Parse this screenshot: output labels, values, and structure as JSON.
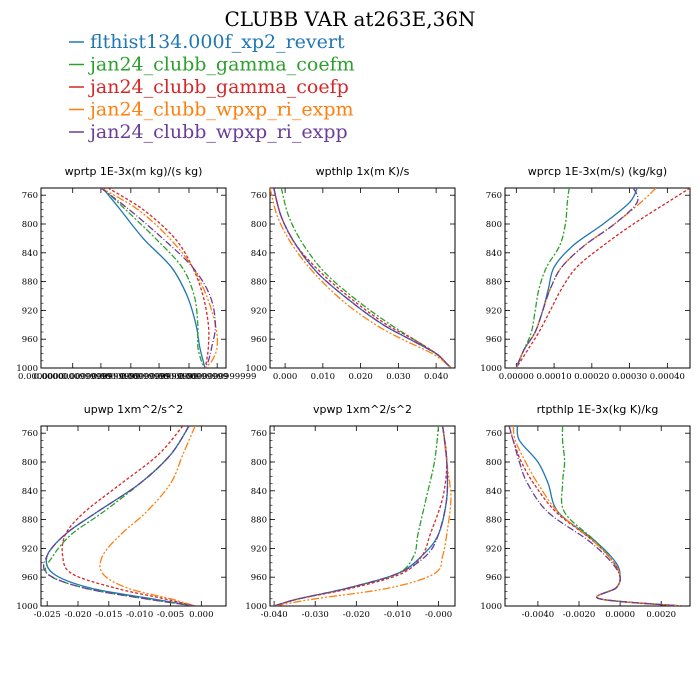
{
  "title": "CLUBB VAR at263E,36N",
  "legend": [
    {
      "name": "flthist134.000f_xp2_revert",
      "color": "#1f77b4"
    },
    {
      "name": "jan24_clubb_gamma_coefm",
      "color": "#2ca02c"
    },
    {
      "name": "jan24_clubb_gamma_coefp",
      "color": "#d62728"
    },
    {
      "name": "jan24_clubb_wpxp_ri_expm",
      "color": "#ff7f0e"
    },
    {
      "name": "jan24_clubb_wpxp_ri_expp",
      "color": "#6a3d9a"
    }
  ],
  "chart_data": [
    {
      "type": "line",
      "title": "wprtp  1E-3x(m kg)/(s kg)",
      "ylim": [
        1000,
        750
      ],
      "yticks": [
        "760",
        "800",
        "840",
        "880",
        "920",
        "960",
        "1000"
      ],
      "xlim": [
        0.0,
        1.05
      ],
      "xticks": [
        {
          "v": 0.0,
          "label": "0.0000000"
        },
        {
          "v": 0.18,
          "label": "0.0000000999999"
        },
        {
          "v": 0.34,
          "label": "0.0000000999999"
        },
        {
          "v": 0.51,
          "label": "0.0000000999999"
        },
        {
          "v": 0.67,
          "label": "0.0000000999999"
        },
        {
          "v": 0.84,
          "label": "0.0000000999999"
        },
        {
          "v": 1.0,
          "label": "0.0000000999999"
        }
      ],
      "y": [
        750,
        780,
        820,
        860,
        900,
        940,
        970,
        990,
        1000
      ],
      "series": [
        {
          "values": [
            0.35,
            0.45,
            0.58,
            0.74,
            0.83,
            0.88,
            0.9,
            0.92,
            0.93
          ]
        },
        {
          "values": [
            0.35,
            0.48,
            0.65,
            0.8,
            0.87,
            0.89,
            0.89,
            0.91,
            0.93
          ]
        },
        {
          "values": [
            0.38,
            0.58,
            0.76,
            0.86,
            0.92,
            0.95,
            0.95,
            0.94,
            0.93
          ]
        },
        {
          "values": [
            0.34,
            0.55,
            0.73,
            0.86,
            0.94,
            0.99,
            1.0,
            0.97,
            0.93
          ]
        },
        {
          "values": [
            0.34,
            0.5,
            0.69,
            0.86,
            0.96,
            0.99,
            0.97,
            0.95,
            0.93
          ]
        }
      ]
    },
    {
      "type": "line",
      "title": "wpthlp  1x(m K)/s",
      "ylim": [
        1000,
        750
      ],
      "yticks": [
        "760",
        "800",
        "840",
        "880",
        "920",
        "960",
        "1000"
      ],
      "xlim": [
        -0.004,
        0.045
      ],
      "xticks": [
        {
          "v": 0.0,
          "label": "0.000"
        },
        {
          "v": 0.01,
          "label": "0.010"
        },
        {
          "v": 0.02,
          "label": "0.020"
        },
        {
          "v": 0.03,
          "label": "0.030"
        },
        {
          "v": 0.04,
          "label": "0.040"
        }
      ],
      "y": [
        750,
        790,
        830,
        870,
        910,
        940,
        960,
        980,
        995,
        1000
      ],
      "series": [
        {
          "values": [
            -0.003,
            -0.001,
            0.003,
            0.009,
            0.018,
            0.026,
            0.033,
            0.04,
            0.043,
            0.044
          ]
        },
        {
          "values": [
            -0.001,
            0.001,
            0.005,
            0.011,
            0.02,
            0.028,
            0.034,
            0.04,
            0.043,
            0.044
          ]
        },
        {
          "values": [
            -0.003,
            -0.001,
            0.003,
            0.01,
            0.019,
            0.027,
            0.034,
            0.04,
            0.043,
            0.044
          ]
        },
        {
          "values": [
            -0.004,
            -0.002,
            0.002,
            0.008,
            0.016,
            0.024,
            0.031,
            0.039,
            0.043,
            0.044
          ]
        },
        {
          "values": [
            -0.003,
            -0.001,
            0.003,
            0.009,
            0.018,
            0.026,
            0.033,
            0.04,
            0.043,
            0.044
          ]
        }
      ]
    },
    {
      "type": "line",
      "title": "wprcp  1E-3x(m/s) (kg/kg)",
      "ylim": [
        1000,
        750
      ],
      "yticks": [
        "760",
        "800",
        "840",
        "880",
        "920",
        "960",
        "1000"
      ],
      "xlim": [
        -3e-05,
        0.00046
      ],
      "xticks": [
        {
          "v": 0.0,
          "label": "0.00000"
        },
        {
          "v": 0.0001,
          "label": "0.00010"
        },
        {
          "v": 0.0002,
          "label": "0.00020"
        },
        {
          "v": 0.0003,
          "label": "0.00030"
        },
        {
          "v": 0.0004,
          "label": "0.00040"
        }
      ],
      "y": [
        750,
        770,
        800,
        830,
        860,
        890,
        920,
        950,
        975,
        1000
      ],
      "series": [
        {
          "values": [
            0.00032,
            0.0003,
            0.00023,
            0.00015,
            0.0001,
            8.5e-05,
            7e-05,
            5e-05,
            2e-05,
            0.0
          ]
        },
        {
          "values": [
            0.00014,
            0.000135,
            0.00013,
            0.000115,
            8e-05,
            6e-05,
            5e-05,
            4e-05,
            2e-05,
            0.0
          ]
        },
        {
          "values": [
            0.00046,
            0.0004,
            0.00031,
            0.00023,
            0.00016,
            0.00012,
            9e-05,
            6e-05,
            3e-05,
            0.0
          ]
        },
        {
          "values": [
            0.00037,
            0.00033,
            0.00026,
            0.00018,
            0.00012,
            9e-05,
            7e-05,
            5e-05,
            2e-05,
            0.0
          ]
        },
        {
          "values": [
            0.00031,
            0.00032,
            0.00026,
            0.00018,
            0.00012,
            9e-05,
            7e-05,
            5e-05,
            2e-05,
            0.0
          ]
        }
      ]
    },
    {
      "type": "line",
      "title": "upwp  1xm^2/s^2",
      "ylim": [
        1000,
        750
      ],
      "yticks": [
        "760",
        "800",
        "840",
        "880",
        "920",
        "960",
        "1000"
      ],
      "xlim": [
        -0.026,
        0.004
      ],
      "xticks": [
        {
          "v": -0.025,
          "label": "-0.025"
        },
        {
          "v": -0.02,
          "label": "-0.020"
        },
        {
          "v": -0.015,
          "label": "-0.015"
        },
        {
          "v": -0.01,
          "label": "-0.010"
        },
        {
          "v": -0.005,
          "label": "-0.005"
        },
        {
          "v": 0.0,
          "label": "0.000"
        }
      ],
      "y": [
        750,
        790,
        830,
        870,
        900,
        930,
        955,
        975,
        990,
        1000
      ],
      "series": [
        {
          "values": [
            -0.002,
            -0.005,
            -0.01,
            -0.017,
            -0.022,
            -0.025,
            -0.024,
            -0.018,
            -0.008,
            -0.001
          ]
        },
        {
          "values": [
            -0.002,
            -0.005,
            -0.01,
            -0.016,
            -0.021,
            -0.024,
            -0.025,
            -0.019,
            -0.009,
            -0.001
          ]
        },
        {
          "values": [
            -0.003,
            -0.007,
            -0.013,
            -0.019,
            -0.022,
            -0.0225,
            -0.021,
            -0.014,
            -0.006,
            -0.001
          ]
        },
        {
          "values": [
            -0.001,
            -0.003,
            -0.005,
            -0.009,
            -0.013,
            -0.016,
            -0.016,
            -0.012,
            -0.005,
            -0.001
          ]
        },
        {
          "values": [
            -0.002,
            -0.005,
            -0.01,
            -0.017,
            -0.022,
            -0.025,
            -0.025,
            -0.019,
            -0.009,
            -0.001
          ]
        }
      ]
    },
    {
      "type": "line",
      "title": "vpwp  1xm^2/s^2",
      "ylim": [
        1000,
        750
      ],
      "yticks": [
        "760",
        "800",
        "840",
        "880",
        "920",
        "960",
        "1000"
      ],
      "xlim": [
        -0.041,
        0.004
      ],
      "xticks": [
        {
          "v": -0.04,
          "label": "-0.040"
        },
        {
          "v": -0.03,
          "label": "-0.030"
        },
        {
          "v": -0.02,
          "label": "-0.020"
        },
        {
          "v": -0.01,
          "label": "-0.010"
        },
        {
          "v": 0.0,
          "label": "-0.000"
        }
      ],
      "y": [
        750,
        800,
        850,
        900,
        930,
        955,
        975,
        990,
        1000
      ],
      "series": [
        {
          "values": [
            0.001,
            0.002,
            0.002,
            0.0,
            -0.004,
            -0.01,
            -0.022,
            -0.034,
            -0.04
          ]
        },
        {
          "values": [
            0.0,
            -0.001,
            -0.003,
            -0.005,
            -0.006,
            -0.01,
            -0.022,
            -0.034,
            -0.04
          ]
        },
        {
          "values": [
            0.001,
            0.002,
            0.001,
            -0.002,
            -0.004,
            -0.009,
            -0.021,
            -0.034,
            -0.04
          ]
        },
        {
          "values": [
            0.001,
            0.002,
            0.003,
            0.002,
            0.001,
            -0.001,
            -0.012,
            -0.03,
            -0.04
          ]
        },
        {
          "values": [
            0.001,
            0.002,
            0.002,
            0.0,
            -0.003,
            -0.01,
            -0.022,
            -0.034,
            -0.04
          ]
        }
      ]
    },
    {
      "type": "line",
      "title": "rtpthlp  1E-3x(kg K)/kg",
      "ylim": [
        1000,
        750
      ],
      "yticks": [
        "760",
        "800",
        "840",
        "880",
        "920",
        "960",
        "1000"
      ],
      "xlim": [
        -0.0056,
        0.0034
      ],
      "xticks": [
        {
          "v": -0.004,
          "label": "-0.0040"
        },
        {
          "v": -0.002,
          "label": "-0.0020"
        },
        {
          "v": 0.0,
          "label": "0.0000"
        },
        {
          "v": 0.002,
          "label": "0.0020"
        }
      ],
      "y": [
        750,
        770,
        800,
        830,
        870,
        910,
        940,
        960,
        975,
        990,
        1000
      ],
      "series": [
        {
          "values": [
            -0.005,
            -0.0049,
            -0.004,
            -0.0035,
            -0.003,
            -0.0012,
            -0.0002,
            0.0,
            -0.0002,
            -0.001,
            0.003
          ]
        },
        {
          "values": [
            -0.0028,
            -0.0028,
            -0.0027,
            -0.0028,
            -0.0027,
            -0.0012,
            -0.0003,
            0.0,
            -0.0002,
            -0.001,
            0.003
          ]
        },
        {
          "values": [
            -0.0054,
            -0.0052,
            -0.0048,
            -0.0042,
            -0.0031,
            -0.0013,
            -0.0003,
            0.0,
            -0.0002,
            -0.001,
            0.003
          ]
        },
        {
          "values": [
            -0.0052,
            -0.0051,
            -0.0046,
            -0.004,
            -0.003,
            -0.0013,
            -0.0003,
            0.0,
            -0.0002,
            -0.001,
            0.003
          ]
        },
        {
          "values": [
            -0.0054,
            -0.0052,
            -0.0049,
            -0.0045,
            -0.0035,
            -0.0015,
            -0.0004,
            0.0,
            -0.0002,
            -0.001,
            0.003
          ]
        }
      ]
    }
  ]
}
